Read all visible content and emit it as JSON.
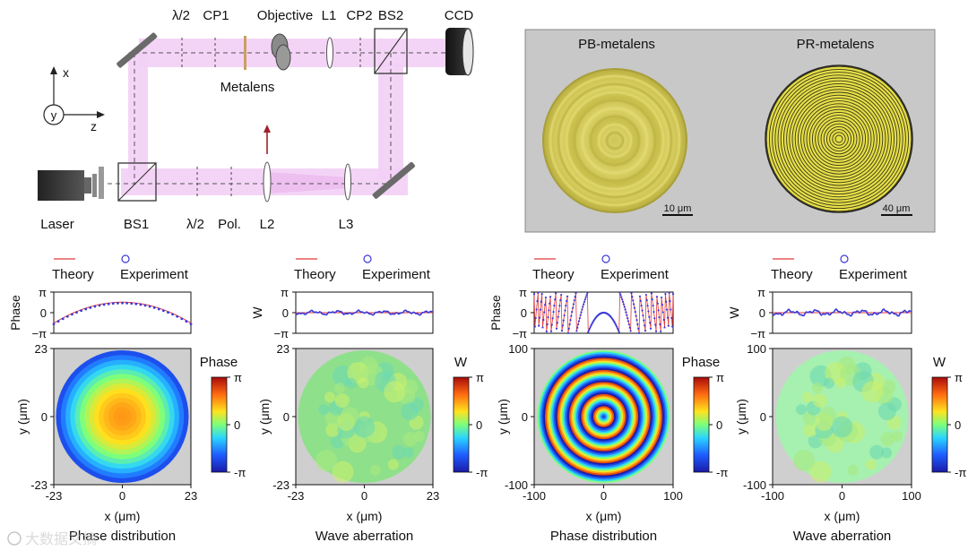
{
  "setup": {
    "labels": {
      "half_wave_1": "λ/2",
      "cp1": "CP1",
      "objective": "Objective",
      "l1": "L1",
      "cp2": "CP2",
      "bs2": "BS2",
      "ccd": "CCD",
      "metalens": "Metalens",
      "laser": "Laser",
      "bs1": "BS1",
      "half_wave_2": "λ/2",
      "pol": "Pol.",
      "l2": "L2",
      "l3": "L3",
      "axis_x": "x",
      "axis_y": "y",
      "axis_z": "z"
    },
    "colors": {
      "beam": "#f2c9f4",
      "arrow": "#a0202a"
    }
  },
  "micrograph": {
    "left_title": "PB-metalens",
    "right_title": "PR-metalens",
    "left_scale": "10 μm",
    "right_scale": "40 μm",
    "colors": {
      "background": "#c8c8c8",
      "left_lens": "#d8cf5a",
      "right_lens": "#e8e04a"
    }
  },
  "legend": {
    "theory": "Theory",
    "experiment": "Experiment"
  },
  "colors": {
    "theory": "#e03a3a",
    "experiment": "#3a3ad8",
    "panel_bg": "#cfcfcf"
  },
  "panels": [
    {
      "type": "phase",
      "small_ylabel": "Phase",
      "small_yticks": [
        "π",
        "0",
        "−π"
      ],
      "map_yticks": [
        "23",
        "0",
        "-23"
      ],
      "map_xticks": [
        "-23",
        "0",
        "23"
      ],
      "ylabel": "y (μm)",
      "xlabel": "x (μm)",
      "colorbar_title": "Phase",
      "colorbar_ticks": [
        "π",
        "0",
        "-π"
      ],
      "caption": "Phase distribution"
    },
    {
      "type": "wave",
      "small_ylabel": "W",
      "small_yticks": [
        "π",
        "0",
        "−π"
      ],
      "map_yticks": [
        "23",
        "0",
        "-23"
      ],
      "map_xticks": [
        "-23",
        "0",
        "23"
      ],
      "ylabel": "y (μm)",
      "xlabel": "x (μm)",
      "colorbar_title": "W",
      "colorbar_ticks": [
        "π",
        "0",
        "-π"
      ],
      "caption": "Wave aberration"
    },
    {
      "type": "phase",
      "small_ylabel": "Phase",
      "small_yticks": [
        "π",
        "0",
        "−π"
      ],
      "map_yticks": [
        "100",
        "0",
        "-100"
      ],
      "map_xticks": [
        "-100",
        "0",
        "100"
      ],
      "ylabel": "y (μm)",
      "xlabel": "x (μm)",
      "colorbar_title": "Phase",
      "colorbar_ticks": [
        "π",
        "0",
        "-π"
      ],
      "caption": "Phase distribution"
    },
    {
      "type": "wave",
      "small_ylabel": "W",
      "small_yticks": [
        "π",
        "0",
        "−π"
      ],
      "map_yticks": [
        "100",
        "0",
        "-100"
      ],
      "map_xticks": [
        "-100",
        "0",
        "100"
      ],
      "ylabel": "y (μm)",
      "xlabel": "x (μm)",
      "colorbar_title": "W",
      "colorbar_ticks": [
        "π",
        "0",
        "-π"
      ],
      "caption": "Wave aberration"
    }
  ],
  "watermark": "大数据文摘"
}
